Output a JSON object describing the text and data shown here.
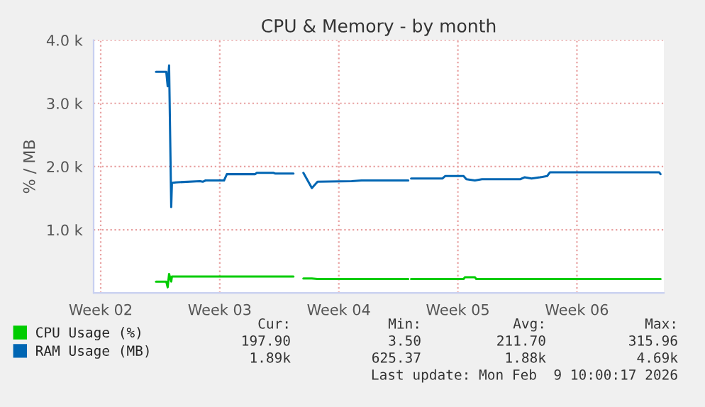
{
  "chart_data": {
    "type": "line",
    "title": "CPU & Memory - by month",
    "ylabel": "% / MB",
    "xlim": [
      "2026-01-04T14:00",
      "2026-02-07T02:40"
    ],
    "ylim": [
      0,
      4000
    ],
    "xticks": [
      {
        "value": "2026-01-05",
        "label": "Week 02"
      },
      {
        "value": "2026-01-12",
        "label": "Week 03"
      },
      {
        "value": "2026-01-19",
        "label": "Week 04"
      },
      {
        "value": "2026-01-26",
        "label": "Week 05"
      },
      {
        "value": "2026-02-02",
        "label": "Week 06"
      }
    ],
    "yticks": [
      {
        "value": 1000,
        "label": "1.0 k"
      },
      {
        "value": 2000,
        "label": "2.0 k"
      },
      {
        "value": 3000,
        "label": "3.0 k"
      },
      {
        "value": 4000,
        "label": "4.0 k"
      }
    ],
    "grid": true,
    "legend": "bottom",
    "marker": "none",
    "line_style": "solid",
    "series": [
      {
        "name": "CPU Usage (%)",
        "color": "#00cc00",
        "x": [
          "2026-01-08T06:00",
          "2026-01-08T20:30",
          "2026-01-08T22:30",
          "2026-01-09T00:30",
          "2026-01-09T03:30",
          "2026-01-09T04:30",
          "2026-01-12T06:00",
          "2026-01-16T08:00",
          "2026-01-16T14:00",
          "2026-01-16T22:00",
          "2026-01-17T10:00",
          "2026-01-17T18:00",
          "2026-01-23T02:00",
          "2026-01-23T04:00",
          "2026-01-23T06:00",
          "2026-01-26T08:00",
          "2026-01-26T10:00",
          "2026-01-27T00:00",
          "2026-01-27T02:00",
          "2026-02-06T22:00"
        ],
        "values": [
          180,
          180,
          90,
          300,
          180,
          260,
          260,
          260,
          null,
          230,
          230,
          220,
          220,
          null,
          220,
          220,
          250,
          250,
          220,
          220
        ]
      },
      {
        "name": "RAM Usage (MB)",
        "color": "#0066b3",
        "x": [
          "2026-01-08T06:00",
          "2026-01-08T20:30",
          "2026-01-08T22:30",
          "2026-01-09T00:30",
          "2026-01-09T03:30",
          "2026-01-09T04:30",
          "2026-01-09T10:00",
          "2026-01-10T20:00",
          "2026-01-11T00:00",
          "2026-01-11T04:00",
          "2026-01-12T06:00",
          "2026-01-12T10:00",
          "2026-01-14T02:00",
          "2026-01-14T04:00",
          "2026-01-15T04:00",
          "2026-01-15T06:00",
          "2026-01-16T08:00",
          "2026-01-16T14:00",
          "2026-01-16T22:00",
          "2026-01-17T10:00",
          "2026-01-17T18:00",
          "2026-01-19T18:00",
          "2026-01-20T08:00",
          "2026-01-23T02:00",
          "2026-01-23T04:00",
          "2026-01-23T06:00",
          "2026-01-25T02:00",
          "2026-01-25T06:00",
          "2026-01-26T08:00",
          "2026-01-26T12:00",
          "2026-01-27T00:00",
          "2026-01-27T10:00",
          "2026-01-29T16:00",
          "2026-01-29T22:00",
          "2026-01-30T08:00",
          "2026-01-30T20:00",
          "2026-01-31T06:00",
          "2026-01-31T10:00",
          "2026-02-06T20:00",
          "2026-02-06T22:00"
        ],
        "values": [
          3500,
          3500,
          3270,
          3600,
          1360,
          1740,
          1750,
          1770,
          1760,
          1780,
          1780,
          1880,
          1880,
          1900,
          1900,
          1890,
          1890,
          null,
          1900,
          1660,
          1760,
          1770,
          1780,
          1780,
          null,
          1810,
          1810,
          1850,
          1850,
          1800,
          1780,
          1800,
          1800,
          1830,
          1810,
          1830,
          1850,
          1910,
          1910,
          1880
        ]
      }
    ],
    "annotations": [
      "Cur:",
      "Min:",
      "Avg:",
      "Max:",
      "197.90",
      "3.50",
      "211.70",
      "315.96",
      "1.89k",
      "625.37",
      "1.88k",
      "4.69k",
      "Last update: Mon Feb  9 10:00:17 2026"
    ]
  }
}
